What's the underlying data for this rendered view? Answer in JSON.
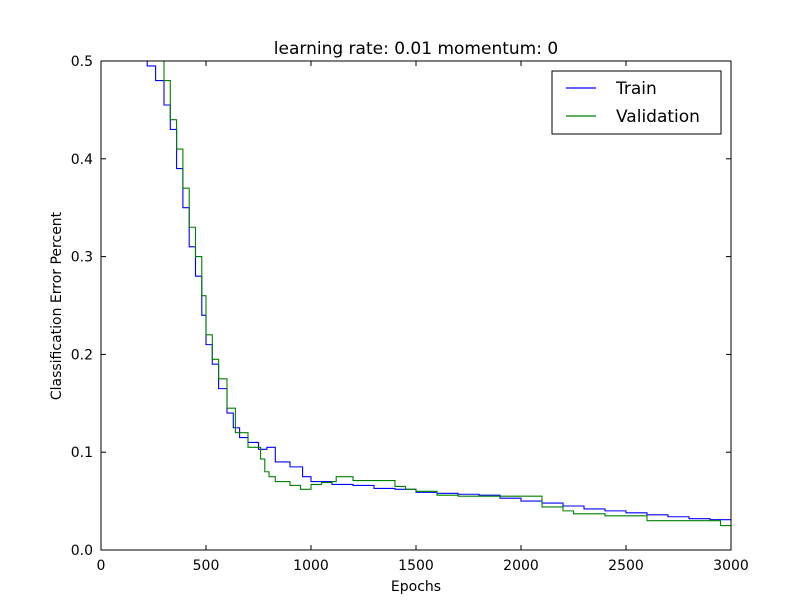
{
  "chart_data": {
    "type": "line",
    "title": "learning rate: 0.01 momentum: 0",
    "xlabel": "Epochs",
    "ylabel": "Classification Error Percent",
    "xlim": [
      0,
      3000
    ],
    "ylim": [
      0.0,
      0.5
    ],
    "xticks": [
      0,
      500,
      1000,
      1500,
      2000,
      2500,
      3000
    ],
    "xtick_labels": [
      "0",
      "500",
      "1000",
      "1500",
      "2000",
      "2500",
      "3000"
    ],
    "yticks": [
      0.0,
      0.1,
      0.2,
      0.3,
      0.4,
      0.5
    ],
    "ytick_labels": [
      "0.0",
      "0.1",
      "0.2",
      "0.3",
      "0.4",
      "0.5"
    ],
    "grid": false,
    "legend_position": "top-right",
    "series": [
      {
        "name": "Train",
        "color": "#0000ff",
        "x": [
          0,
          180,
          220,
          260,
          300,
          330,
          360,
          390,
          420,
          450,
          480,
          500,
          530,
          560,
          600,
          630,
          660,
          700,
          750,
          790,
          830,
          900,
          960,
          1000,
          1100,
          1200,
          1300,
          1400,
          1500,
          1600,
          1700,
          1800,
          1900,
          2000,
          2100,
          2200,
          2300,
          2400,
          2500,
          2600,
          2700,
          2800,
          2900,
          3000
        ],
        "y": [
          0.5,
          0.5,
          0.495,
          0.48,
          0.455,
          0.43,
          0.39,
          0.35,
          0.31,
          0.28,
          0.24,
          0.21,
          0.19,
          0.165,
          0.14,
          0.125,
          0.115,
          0.11,
          0.103,
          0.105,
          0.09,
          0.085,
          0.075,
          0.07,
          0.067,
          0.066,
          0.063,
          0.062,
          0.059,
          0.058,
          0.057,
          0.056,
          0.053,
          0.05,
          0.048,
          0.045,
          0.042,
          0.04,
          0.038,
          0.036,
          0.034,
          0.032,
          0.031,
          0.031
        ]
      },
      {
        "name": "Validation",
        "color": "#008000",
        "x": [
          0,
          280,
          300,
          330,
          360,
          390,
          420,
          450,
          480,
          500,
          530,
          560,
          600,
          640,
          700,
          760,
          780,
          800,
          830,
          900,
          950,
          1000,
          1050,
          1100,
          1120,
          1200,
          1300,
          1400,
          1450,
          1500,
          1600,
          1700,
          1800,
          1900,
          2000,
          2050,
          2100,
          2200,
          2250,
          2300,
          2400,
          2500,
          2600,
          2700,
          2800,
          2900,
          2950,
          3000
        ],
        "y": [
          0.5,
          0.5,
          0.48,
          0.44,
          0.41,
          0.37,
          0.33,
          0.3,
          0.26,
          0.22,
          0.195,
          0.175,
          0.145,
          0.12,
          0.105,
          0.093,
          0.08,
          0.075,
          0.07,
          0.066,
          0.062,
          0.067,
          0.069,
          0.07,
          0.075,
          0.071,
          0.071,
          0.065,
          0.062,
          0.06,
          0.056,
          0.055,
          0.055,
          0.055,
          0.055,
          0.055,
          0.044,
          0.04,
          0.037,
          0.037,
          0.035,
          0.035,
          0.03,
          0.03,
          0.03,
          0.03,
          0.025,
          0.025
        ]
      }
    ]
  }
}
